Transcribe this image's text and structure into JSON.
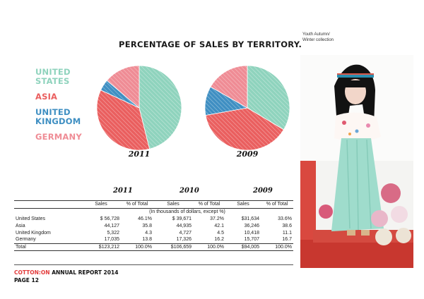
{
  "title": "PERCENTAGE OF SALES BY TERRITORY.",
  "legend": [
    {
      "lines": [
        "UNITED",
        "STATES"
      ],
      "color": "#8fd3bd"
    },
    {
      "lines": [
        "ASIA"
      ],
      "color": "#ea5f5f"
    },
    {
      "lines": [
        "UNITED",
        "KINGDOM"
      ],
      "color": "#3f8fc2"
    },
    {
      "lines": [
        "GERMANY"
      ],
      "color": "#ef8c95"
    }
  ],
  "chart_data": [
    {
      "type": "pie",
      "title": "2011",
      "categories": [
        "United States",
        "Asia",
        "United Kingdom",
        "Germany"
      ],
      "values": [
        46.1,
        35.8,
        4.3,
        13.8
      ],
      "colors": [
        "#8fd3bd",
        "#ea5f5f",
        "#3f8fc2",
        "#ef8c95"
      ]
    },
    {
      "type": "pie",
      "title": "2009",
      "categories": [
        "United States",
        "Asia",
        "United Kingdom",
        "Germany"
      ],
      "values": [
        33.6,
        38.6,
        11.1,
        16.7
      ],
      "colors": [
        "#8fd3bd",
        "#ea5f5f",
        "#3f8fc2",
        "#ef8c95"
      ]
    }
  ],
  "table": {
    "years": [
      "2011",
      "2010",
      "2009"
    ],
    "sales_label": "Sales",
    "pct_label": "% of Total",
    "note": "(In thousands of dollars, except %)",
    "rows": [
      {
        "name": "United States",
        "cells": [
          "$ 56,728",
          "46.1%",
          "$ 39,671",
          "37.2%",
          "$31,634",
          "33.6%"
        ]
      },
      {
        "name": "Asia",
        "cells": [
          "44,127",
          "35.8",
          "44,935",
          "42.1",
          "36,246",
          "38.6"
        ]
      },
      {
        "name": "United Kingdom",
        "cells": [
          "5,322",
          "4.3",
          "4,727",
          "4.5",
          "10,418",
          "11.1"
        ]
      },
      {
        "name": "Germany",
        "cells": [
          "17,035",
          "13.8",
          "17,326",
          "16.2",
          "15,707",
          "16.7"
        ]
      }
    ],
    "total": {
      "name": "Total",
      "cells": [
        "$123,212",
        "100.0%",
        "$106,659",
        "100.0%",
        "$94,005",
        "100.0%"
      ]
    }
  },
  "footer": {
    "brand": "COTTON:ON",
    "report": " ANNUAL REPORT 2014",
    "page": "PAGE 12"
  },
  "photo": {
    "caption_lines": [
      "Youth Autumn/",
      "Winter collection"
    ]
  }
}
